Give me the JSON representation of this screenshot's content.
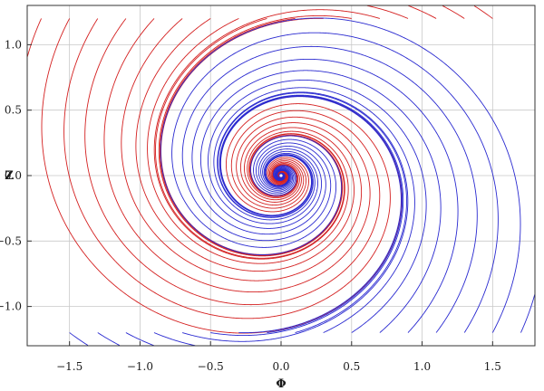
{
  "chart_data": {
    "type": "line",
    "subtype": "phase-portrait",
    "title": "",
    "xlabel": "Φ",
    "ylabel": "Z",
    "xlim": [
      -1.8,
      1.8
    ],
    "ylim": [
      -1.3,
      1.3
    ],
    "x_ticks": [
      -1.5,
      -1.0,
      -0.5,
      0.0,
      0.5,
      1.0,
      1.5
    ],
    "x_tick_labels": [
      "−1.5",
      "−1.0",
      "−0.5",
      "0.0",
      "0.5",
      "1.0",
      "1.5"
    ],
    "y_ticks": [
      -1.0,
      -0.5,
      0.0,
      0.5,
      1.0
    ],
    "y_tick_labels": [
      "−1.0",
      "−0.5",
      "0.0",
      "0.5",
      "1.0"
    ],
    "grid": true,
    "legend": "none",
    "equilibrium": {
      "x": 0.0,
      "y": 0.0
    },
    "series": [
      {
        "color": "#d42020",
        "trajectories": {
          "start_y": 1.2,
          "start_x": [
            -1.7,
            -1.5,
            -1.3,
            -1.1,
            -0.9,
            -0.7,
            -0.5,
            -0.3,
            -0.1,
            0.1,
            0.3,
            0.5,
            0.7,
            0.9,
            1.1,
            1.3,
            1.5
          ]
        }
      },
      {
        "color": "#2a2ad0",
        "trajectories": {
          "start_y": -1.2,
          "start_x": [
            -1.5,
            -1.3,
            -1.1,
            -0.9,
            -0.7,
            -0.5,
            -0.3,
            -0.1,
            0.1,
            0.3,
            0.5,
            0.7,
            0.9,
            1.1,
            1.3,
            1.5,
            1.7
          ]
        }
      }
    ]
  }
}
